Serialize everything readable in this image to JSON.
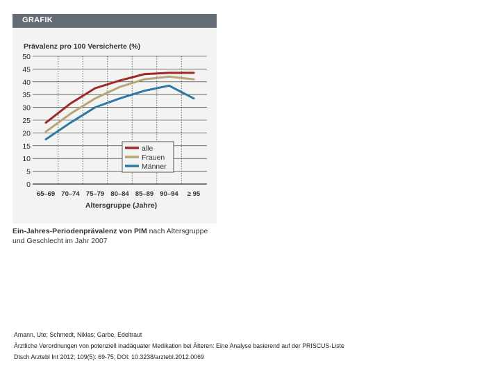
{
  "figure_header": "GRAFIK",
  "caption": {
    "bold_text": "Ein-Jahres-Periodenprävalenz von PIM",
    "text": " nach Altersgruppe und Geschlecht im Jahr 2007"
  },
  "citation": {
    "authors": "Amann, Ute; Schmedt, Niklas; Garbe, Edeltraut",
    "title": "Ärztliche Verordnungen von potenziell inadäquater Medikation bei Älteren: Eine Analyse basierend auf der PRISCUS-Liste",
    "reference": "Dtsch Arztebl Int 2012; 109(5): 69-75; DOI: 10.3238/arztebl.2012.0069"
  },
  "colors": {
    "alle": "#a0282a",
    "Frauen": "#b6a578",
    "Männer": "#2d79a6",
    "header": "#636b75",
    "panel": "#f3f3f1"
  },
  "chart_data": {
    "type": "line",
    "title": "Prävalenz pro 100 Versicherte (%)",
    "xlabel": "Altersgruppe (Jahre)",
    "ylabel": "",
    "categories": [
      "65–69",
      "70–74",
      "75–79",
      "80–84",
      "85–89",
      "90–94",
      "≥ 95"
    ],
    "ylim": [
      0,
      50
    ],
    "yticks": [
      "0",
      "5",
      "10",
      "15",
      "20",
      "25",
      "30",
      "35",
      "40",
      "45",
      "50"
    ],
    "grid": true,
    "legend_position": "bottom-right",
    "series": [
      {
        "name": "alle",
        "values": [
          24,
          31.5,
          37.5,
          40.5,
          43,
          43.5,
          43.5
        ]
      },
      {
        "name": "Frauen",
        "values": [
          20.5,
          27.5,
          33.5,
          38,
          41,
          42,
          41
        ]
      },
      {
        "name": "Männer",
        "values": [
          17.5,
          24,
          30,
          33.5,
          36.5,
          38.5,
          33.5
        ]
      }
    ]
  }
}
